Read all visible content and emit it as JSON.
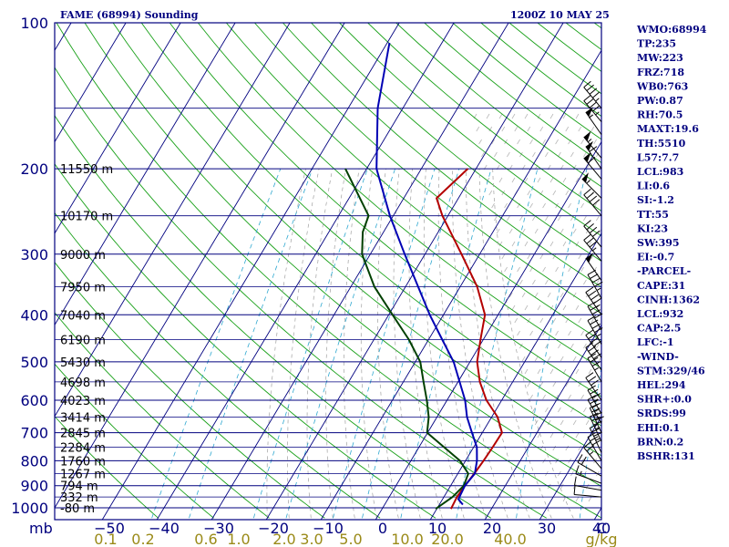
{
  "header": {
    "title": "FAME (68994) Sounding",
    "time": "1200Z 10 MAY 25"
  },
  "chart_data": {
    "type": "line",
    "title": "FAME (68994) Sounding",
    "x_axis": {
      "label": "C",
      "ticks": [
        "−50",
        "−40",
        "−30",
        "−20",
        "−10",
        "0",
        "10",
        "20",
        "30",
        "40"
      ],
      "range_c": [
        -50,
        50
      ]
    },
    "y_axis": {
      "label": "mb",
      "ticks": [
        "100",
        "200",
        "300",
        "400",
        "500",
        "600",
        "700",
        "800",
        "900",
        "1000"
      ],
      "range_mb": [
        100,
        1000
      ],
      "scale": "log"
    },
    "mixing_ratio_axis": {
      "label": "g/kg",
      "ticks": [
        "0.1",
        "0.2",
        "0.6",
        "1.0",
        "2.0",
        "3.0",
        "5.0",
        "10.0",
        "20.0",
        "40.0"
      ]
    },
    "height_labels": [
      {
        "p": 200,
        "label": "11550 m"
      },
      {
        "p": 250,
        "label": "10170 m"
      },
      {
        "p": 300,
        "label": "9000 m"
      },
      {
        "p": 350,
        "label": "7950 m"
      },
      {
        "p": 400,
        "label": "7040 m"
      },
      {
        "p": 450,
        "label": "6190 m"
      },
      {
        "p": 500,
        "label": "5430 m"
      },
      {
        "p": 550,
        "label": "4698 m"
      },
      {
        "p": 600,
        "label": "4023 m"
      },
      {
        "p": 650,
        "label": "3414 m"
      },
      {
        "p": 700,
        "label": "2845 m"
      },
      {
        "p": 750,
        "label": "2284 m"
      },
      {
        "p": 800,
        "label": "1760 m"
      },
      {
        "p": 850,
        "label": "1267 m"
      },
      {
        "p": 900,
        "label": "794 m"
      },
      {
        "p": 950,
        "label": "332 m"
      },
      {
        "p": 1000,
        "label": "-80 m"
      }
    ],
    "series": [
      {
        "color": "#b40000",
        "points": [
          [
            1005,
            12.6
          ],
          [
            950,
            12.4
          ],
          [
            900,
            12.6
          ],
          [
            850,
            13.0
          ],
          [
            800,
            13.3
          ],
          [
            750,
            13.5
          ],
          [
            700,
            13.6
          ],
          [
            650,
            11.1
          ],
          [
            600,
            7.2
          ],
          [
            550,
            4.0
          ],
          [
            500,
            1.3
          ],
          [
            450,
            -0.5
          ],
          [
            400,
            -2.4
          ],
          [
            350,
            -6.9
          ],
          [
            300,
            -13.3
          ],
          [
            250,
            -21.0
          ],
          [
            230,
            -24.0
          ],
          [
            200,
            -21.5
          ]
        ]
      },
      {
        "color": "#004000",
        "points": [
          [
            1005,
            9.8
          ],
          [
            950,
            11.6
          ],
          [
            900,
            12.4
          ],
          [
            850,
            11.9
          ],
          [
            800,
            9.0
          ],
          [
            750,
            4.6
          ],
          [
            700,
            -0.1
          ],
          [
            650,
            -1.5
          ],
          [
            600,
            -3.7
          ],
          [
            550,
            -6.3
          ],
          [
            500,
            -9.1
          ],
          [
            450,
            -13.6
          ],
          [
            400,
            -19.3
          ],
          [
            350,
            -25.7
          ],
          [
            300,
            -31.5
          ],
          [
            270,
            -33.8
          ],
          [
            250,
            -34.5
          ],
          [
            200,
            -43.9
          ]
        ]
      },
      {
        "color": "#0000b4",
        "points": [
          [
            985,
            14.3
          ],
          [
            960,
            12.9
          ],
          [
            900,
            12.6
          ],
          [
            850,
            13.1
          ],
          [
            800,
            12.1
          ],
          [
            750,
            10.6
          ],
          [
            700,
            8.1
          ],
          [
            650,
            5.5
          ],
          [
            600,
            3.3
          ],
          [
            550,
            0.3
          ],
          [
            500,
            -3.0
          ],
          [
            450,
            -7.5
          ],
          [
            400,
            -12.5
          ],
          [
            350,
            -17.7
          ],
          [
            300,
            -23.7
          ],
          [
            250,
            -30.6
          ],
          [
            200,
            -38.2
          ],
          [
            150,
            -44.6
          ],
          [
            110,
            -49.6
          ]
        ]
      }
    ],
    "wind_barbs": [
      {
        "p": 150,
        "dir": 320,
        "spd": 45
      },
      {
        "p": 160,
        "dir": 320,
        "spd": 45
      },
      {
        "p": 170,
        "dir": 325,
        "spd": 55
      },
      {
        "p": 190,
        "dir": 320,
        "spd": 55
      },
      {
        "p": 200,
        "dir": 325,
        "spd": 60
      },
      {
        "p": 210,
        "dir": 320,
        "spd": 60
      },
      {
        "p": 230,
        "dir": 315,
        "spd": 55
      },
      {
        "p": 250,
        "dir": 320,
        "spd": 40
      },
      {
        "p": 290,
        "dir": 320,
        "spd": 40
      },
      {
        "p": 310,
        "dir": 320,
        "spd": 35
      },
      {
        "p": 340,
        "dir": 325,
        "spd": 50
      },
      {
        "p": 370,
        "dir": 330,
        "spd": 45
      },
      {
        "p": 400,
        "dir": 325,
        "spd": 45
      },
      {
        "p": 430,
        "dir": 330,
        "spd": 40
      },
      {
        "p": 460,
        "dir": 330,
        "spd": 45
      },
      {
        "p": 490,
        "dir": 325,
        "spd": 40
      },
      {
        "p": 520,
        "dir": 325,
        "spd": 40
      },
      {
        "p": 550,
        "dir": 330,
        "spd": 35
      },
      {
        "p": 600,
        "dir": 325,
        "spd": 30
      },
      {
        "p": 640,
        "dir": 330,
        "spd": 35
      },
      {
        "p": 670,
        "dir": 330,
        "spd": 35
      },
      {
        "p": 700,
        "dir": 335,
        "spd": 40
      },
      {
        "p": 730,
        "dir": 335,
        "spd": 35
      },
      {
        "p": 770,
        "dir": 335,
        "spd": 35
      },
      {
        "p": 800,
        "dir": 330,
        "spd": 30
      },
      {
        "p": 830,
        "dir": 320,
        "spd": 25
      },
      {
        "p": 860,
        "dir": 300,
        "spd": 20
      },
      {
        "p": 890,
        "dir": 290,
        "spd": 15
      },
      {
        "p": 920,
        "dir": 280,
        "spd": 10
      },
      {
        "p": 950,
        "dir": 275,
        "spd": 10
      }
    ]
  },
  "indices": [
    "WMO:68994",
    "TP:235",
    "MW:223",
    "FRZ:718",
    "WB0:763",
    "PW:0.87",
    "RH:70.5",
    "MAXT:19.6",
    "TH:5510",
    "L57:7.7",
    "LCL:983",
    "LI:0.6",
    "SI:-1.2",
    "TT:55",
    "KI:23",
    "SW:395",
    "EI:-0.7",
    "-PARCEL-",
    "CAPE:31",
    "CINH:1362",
    "LCL:932",
    "CAP:2.5",
    "LFC:-1",
    "-WIND-",
    "STM:329/46",
    "HEL:294",
    "SHR+:0.0",
    "SRDS:99",
    "EHI:0.1",
    "BRN:0.2",
    "BSHR:131"
  ]
}
